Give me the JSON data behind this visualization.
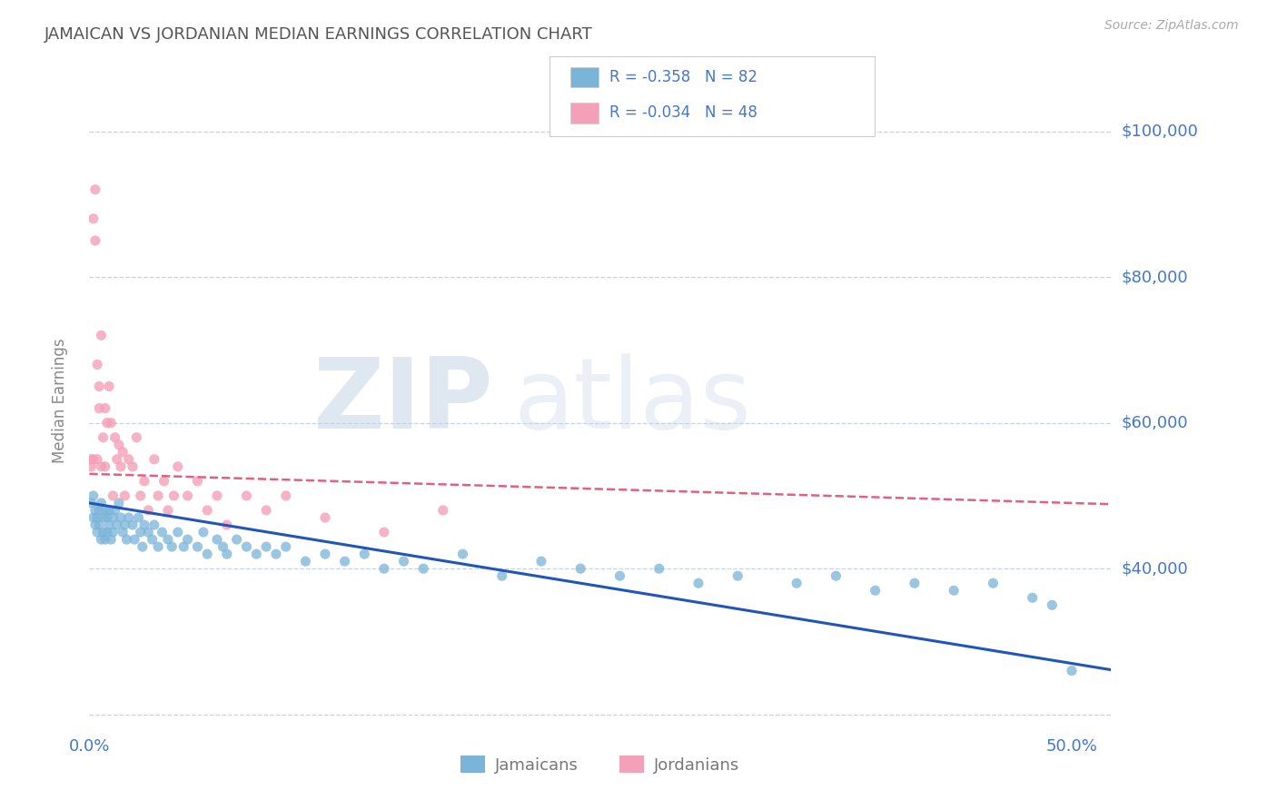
{
  "title": "JAMAICAN VS JORDANIAN MEDIAN EARNINGS CORRELATION CHART",
  "source_text": "Source: ZipAtlas.com",
  "ylabel": "Median Earnings",
  "yticks": [
    20000,
    40000,
    60000,
    80000,
    100000
  ],
  "ytick_labels": [
    "",
    "$40,000",
    "$60,000",
    "$80,000",
    "$100,000"
  ],
  "xtick_labels": [
    "0.0%",
    "50.0%"
  ],
  "xlim": [
    0.0,
    0.52
  ],
  "ylim": [
    18000,
    108000
  ],
  "watermark_zip": "ZIP",
  "watermark_atlas": "atlas",
  "jamaicans_color": "#7ab4d8",
  "jordanians_color": "#f4a0b8",
  "trend_jamaicans_color": "#2255bb",
  "trend_jordanians_color": "#e06080",
  "background_color": "#ffffff",
  "grid_color": "#c0cfe0",
  "title_color": "#555555",
  "axis_label_color": "#4477cc",
  "r_jamaicans": -0.358,
  "n_jamaicans": 82,
  "r_jordanians": -0.034,
  "n_jordanians": 48,
  "jamaicans_x": [
    0.001,
    0.002,
    0.002,
    0.003,
    0.003,
    0.004,
    0.004,
    0.005,
    0.005,
    0.006,
    0.006,
    0.007,
    0.007,
    0.008,
    0.008,
    0.009,
    0.009,
    0.01,
    0.01,
    0.011,
    0.012,
    0.012,
    0.013,
    0.014,
    0.015,
    0.016,
    0.017,
    0.018,
    0.019,
    0.02,
    0.022,
    0.023,
    0.025,
    0.026,
    0.027,
    0.028,
    0.03,
    0.032,
    0.033,
    0.035,
    0.037,
    0.04,
    0.042,
    0.045,
    0.048,
    0.05,
    0.055,
    0.058,
    0.06,
    0.065,
    0.068,
    0.07,
    0.075,
    0.08,
    0.085,
    0.09,
    0.095,
    0.1,
    0.11,
    0.12,
    0.13,
    0.14,
    0.15,
    0.16,
    0.17,
    0.19,
    0.21,
    0.23,
    0.25,
    0.27,
    0.29,
    0.31,
    0.33,
    0.36,
    0.38,
    0.4,
    0.42,
    0.44,
    0.46,
    0.48,
    0.49,
    0.5
  ],
  "jamaicans_y": [
    49000,
    47000,
    50000,
    46000,
    48000,
    45000,
    47000,
    48000,
    46000,
    49000,
    44000,
    47000,
    45000,
    48000,
    44000,
    47000,
    45000,
    46000,
    48000,
    44000,
    47000,
    45000,
    48000,
    46000,
    49000,
    47000,
    45000,
    46000,
    44000,
    47000,
    46000,
    44000,
    47000,
    45000,
    43000,
    46000,
    45000,
    44000,
    46000,
    43000,
    45000,
    44000,
    43000,
    45000,
    43000,
    44000,
    43000,
    45000,
    42000,
    44000,
    43000,
    42000,
    44000,
    43000,
    42000,
    43000,
    42000,
    43000,
    41000,
    42000,
    41000,
    42000,
    40000,
    41000,
    40000,
    42000,
    39000,
    41000,
    40000,
    39000,
    40000,
    38000,
    39000,
    38000,
    39000,
    37000,
    38000,
    37000,
    38000,
    36000,
    35000,
    26000
  ],
  "jordanians_x": [
    0.001,
    0.001,
    0.002,
    0.002,
    0.003,
    0.003,
    0.004,
    0.004,
    0.005,
    0.005,
    0.006,
    0.006,
    0.007,
    0.008,
    0.008,
    0.009,
    0.01,
    0.011,
    0.012,
    0.013,
    0.014,
    0.015,
    0.016,
    0.017,
    0.018,
    0.02,
    0.022,
    0.024,
    0.026,
    0.028,
    0.03,
    0.033,
    0.035,
    0.038,
    0.04,
    0.043,
    0.045,
    0.05,
    0.055,
    0.06,
    0.065,
    0.07,
    0.08,
    0.09,
    0.1,
    0.12,
    0.15,
    0.18
  ],
  "jordanians_y": [
    54000,
    55000,
    55000,
    88000,
    85000,
    92000,
    55000,
    68000,
    62000,
    65000,
    54000,
    72000,
    58000,
    62000,
    54000,
    60000,
    65000,
    60000,
    50000,
    58000,
    55000,
    57000,
    54000,
    56000,
    50000,
    55000,
    54000,
    58000,
    50000,
    52000,
    48000,
    55000,
    50000,
    52000,
    48000,
    50000,
    54000,
    50000,
    52000,
    48000,
    50000,
    46000,
    50000,
    48000,
    50000,
    47000,
    45000,
    48000
  ]
}
